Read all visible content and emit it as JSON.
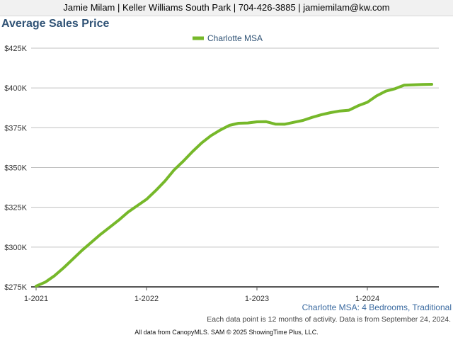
{
  "header": {
    "contact": "Jamie Milam | Keller Williams South Park | 704-426-3885 | jamiemilam@kw.com"
  },
  "title": "Average Sales Price",
  "subtitle": "Charlotte MSA: 4 Bedrooms, Traditional",
  "footnote": "Each data point is 12 months of activity. Data is from September 24, 2024.",
  "source": "All data from CanopyMLS. SAM © 2025 ShowingTime Plus, LLC.",
  "colors": {
    "line": "#76b82a",
    "title": "#2f5275",
    "subtitle": "#3a6aa0",
    "grid": "#c0c0c0"
  },
  "chart_data": {
    "type": "line",
    "title": "Average Sales Price",
    "xlabel": "",
    "ylabel": "",
    "ylim": [
      275000,
      425000
    ],
    "y_ticks": [
      {
        "value": 275000,
        "label": "$275K"
      },
      {
        "value": 300000,
        "label": "$300K"
      },
      {
        "value": 325000,
        "label": "$325K"
      },
      {
        "value": 350000,
        "label": "$350K"
      },
      {
        "value": 375000,
        "label": "$375K"
      },
      {
        "value": 400000,
        "label": "$400K"
      },
      {
        "value": 425000,
        "label": "$425K"
      }
    ],
    "x_ticks": [
      {
        "month": 0,
        "label": "1-2021"
      },
      {
        "month": 12,
        "label": "1-2022"
      },
      {
        "month": 24,
        "label": "1-2023"
      },
      {
        "month": 36,
        "label": "1-2024"
      }
    ],
    "x_range": [
      0,
      44
    ],
    "grid": true,
    "legend": "top-center",
    "series": [
      {
        "name": "Charlotte MSA",
        "color": "#76b82a",
        "x": [
          "1-2021",
          "2-2021",
          "3-2021",
          "4-2021",
          "5-2021",
          "6-2021",
          "7-2021",
          "8-2021",
          "9-2021",
          "10-2021",
          "11-2021",
          "12-2021",
          "1-2022",
          "2-2022",
          "3-2022",
          "4-2022",
          "5-2022",
          "6-2022",
          "7-2022",
          "8-2022",
          "9-2022",
          "10-2022",
          "11-2022",
          "12-2022",
          "1-2023",
          "2-2023",
          "3-2023",
          "4-2023",
          "5-2023",
          "6-2023",
          "7-2023",
          "8-2023",
          "9-2023",
          "10-2023",
          "11-2023",
          "12-2023",
          "1-2024",
          "2-2024",
          "3-2024",
          "4-2024",
          "5-2024",
          "6-2024",
          "7-2024",
          "8-2024"
        ],
        "values": [
          275500,
          278000,
          282000,
          287000,
          292500,
          298000,
          303000,
          308000,
          312500,
          317000,
          322000,
          326000,
          330000,
          335500,
          341500,
          348500,
          354000,
          360000,
          365500,
          370000,
          373500,
          376500,
          377800,
          378000,
          378700,
          378800,
          377300,
          377200,
          378400,
          379600,
          381500,
          383200,
          384500,
          385500,
          386000,
          388800,
          391000,
          395000,
          398000,
          399500,
          401700,
          402000,
          402200,
          402300
        ]
      }
    ]
  }
}
